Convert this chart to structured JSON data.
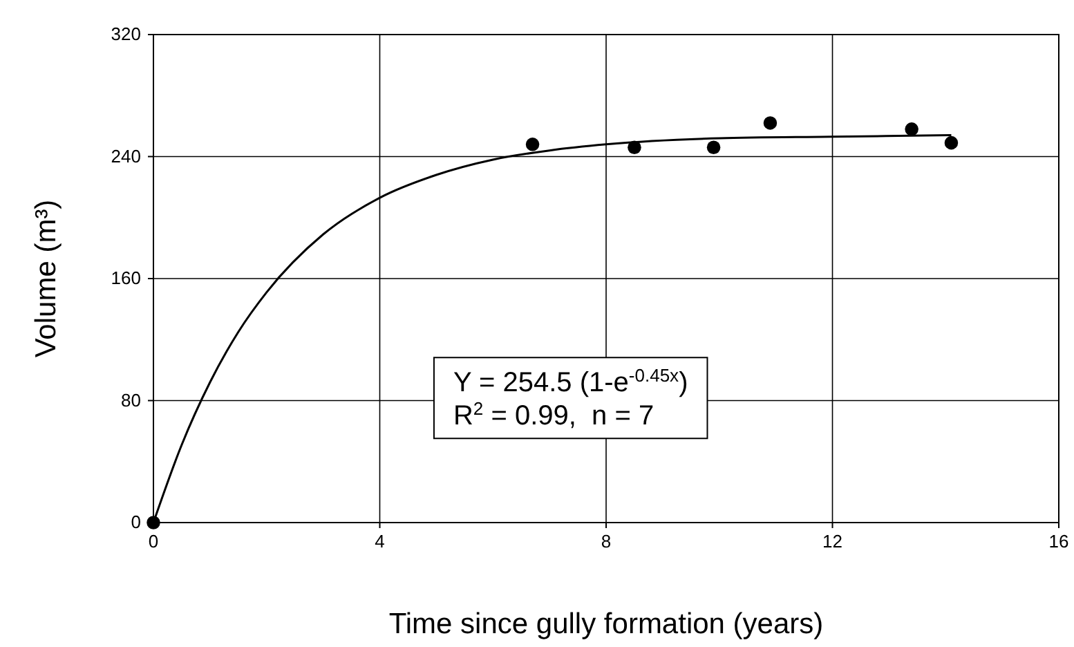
{
  "chart_data": {
    "type": "scatter",
    "xlabel": "Time since gully formation (years)",
    "ylabel": "Volume (m³)",
    "xlim": [
      0,
      16
    ],
    "xticks": [
      0,
      4,
      8,
      12,
      16
    ],
    "ylim": [
      0,
      320
    ],
    "yticks": [
      0,
      80,
      160,
      240,
      320
    ],
    "grid": true,
    "marker": "circle",
    "series": [
      {
        "color": "#000000",
        "x": [
          0,
          6.7,
          8.5,
          9.9,
          10.9,
          13.4,
          14.1
        ],
        "values": [
          0,
          248,
          246,
          246,
          262,
          258,
          249
        ]
      },
      {
        "type": "line",
        "color": "#000000",
        "line_style": "solid",
        "marker": "none",
        "x": [
          0,
          0.5,
          1,
          1.5,
          2,
          3,
          4,
          5,
          6,
          7,
          8,
          10,
          12,
          14.1
        ],
        "values": [
          0,
          51,
          92,
          125,
          151,
          189,
          213,
          228,
          238,
          244,
          248,
          252,
          253,
          254
        ]
      }
    ],
    "annotations": [
      "Y = 254.5 (1-e$^{-0.45x}$)",
      "R$^{2}$ = 0.99,  n = 7"
    ]
  }
}
